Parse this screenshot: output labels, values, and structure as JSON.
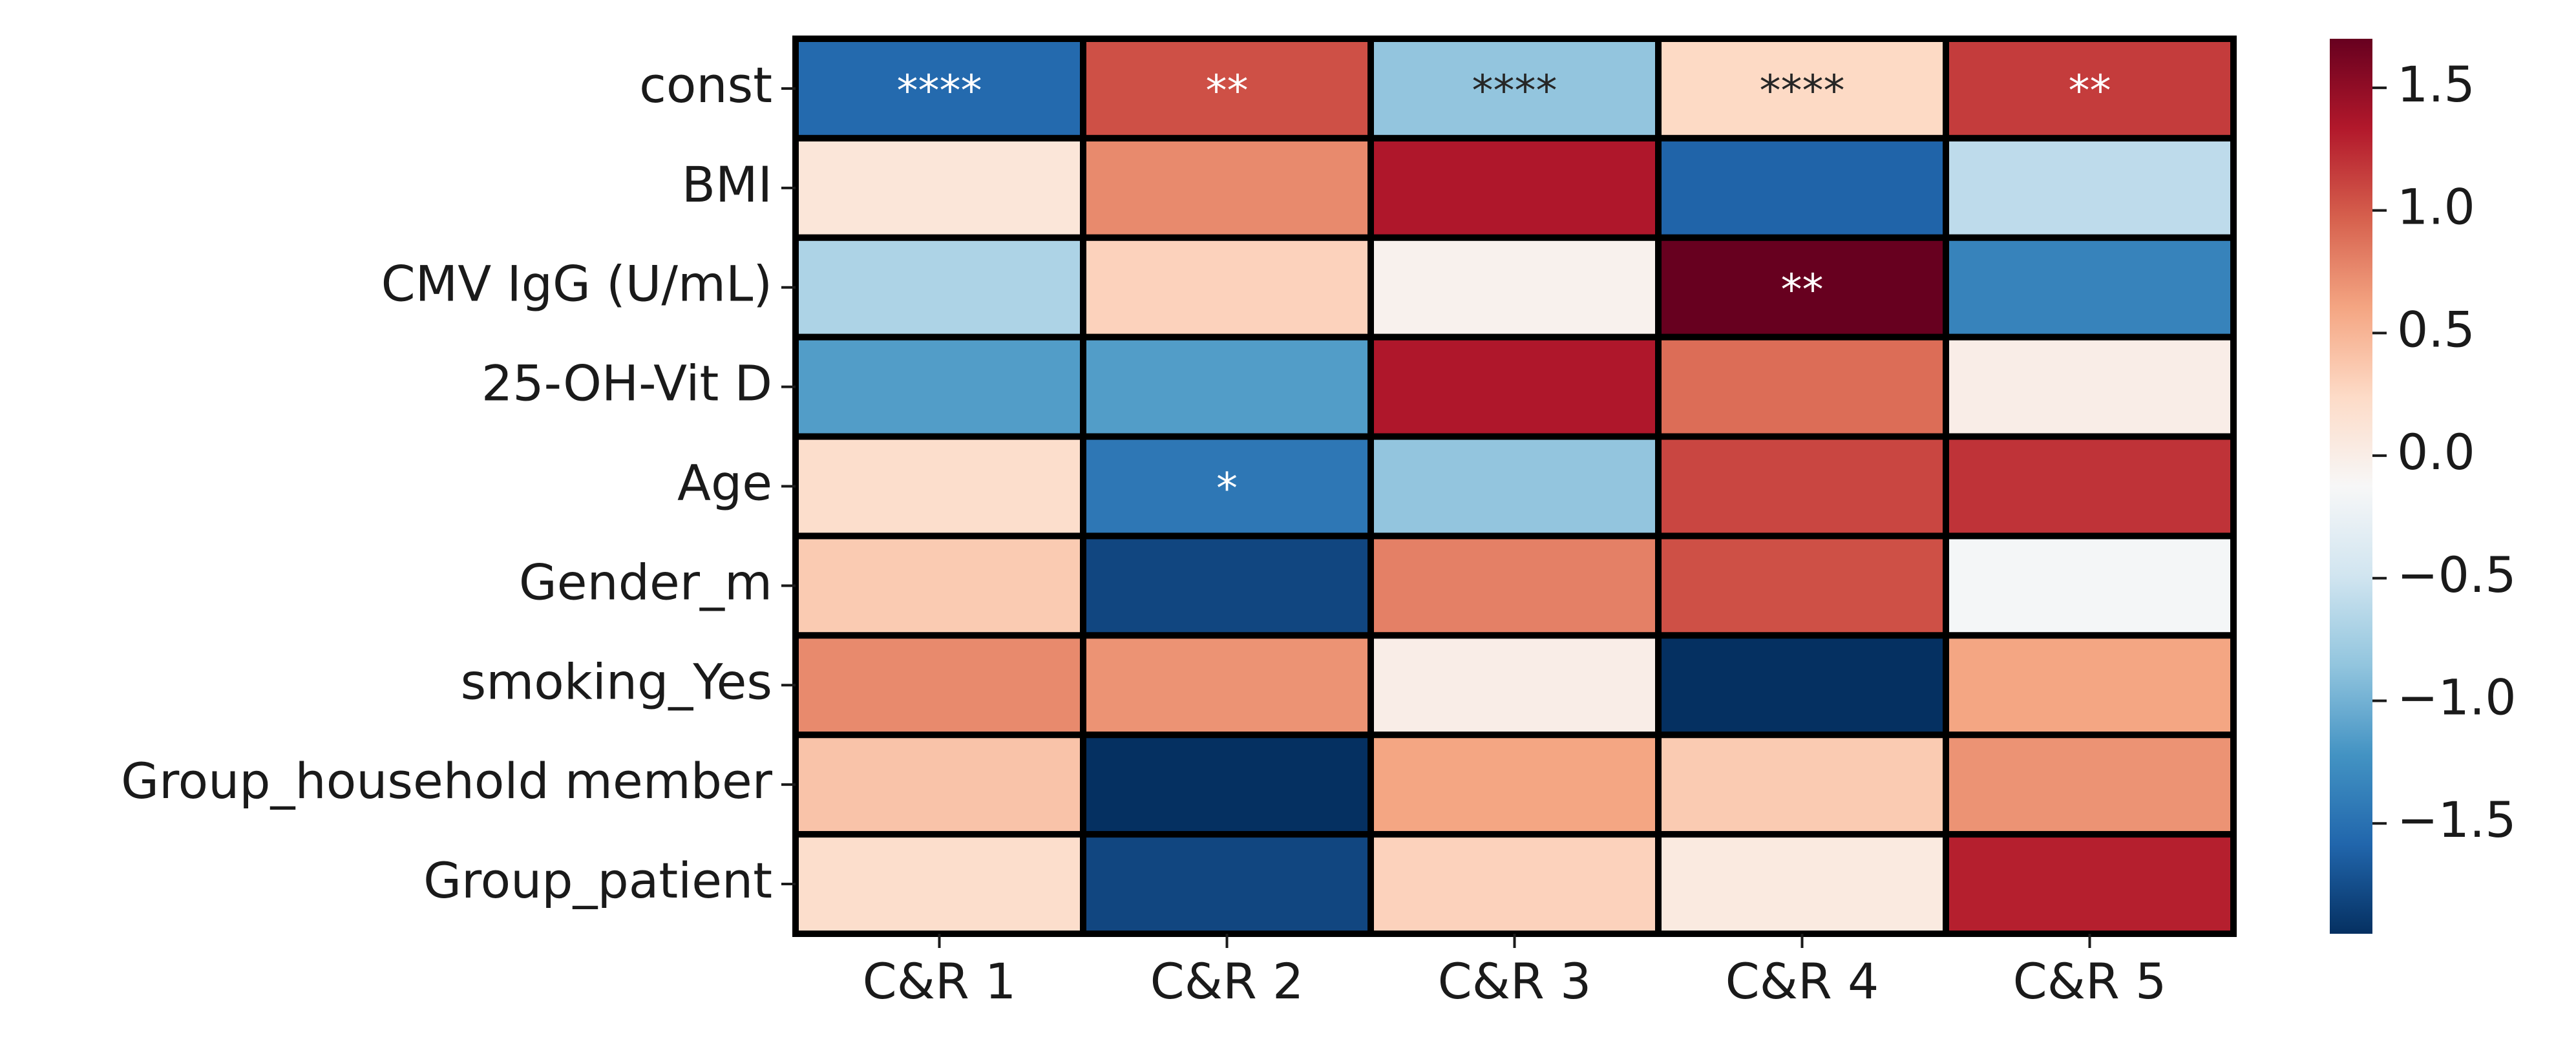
{
  "chart_data": {
    "type": "heatmap",
    "title": "",
    "xlabel": "",
    "ylabel": "",
    "columns": [
      "C&R 1",
      "C&R 2",
      "C&R 3",
      "C&R 4",
      "C&R 5"
    ],
    "rows": [
      "const",
      "BMI",
      "CMV IgG (U/mL)",
      "25-OH-Vit D",
      "Age",
      "Gender_m",
      "smoking_Yes",
      "Group_household member",
      "Group_patient"
    ],
    "values": [
      [
        -1.55,
        1.05,
        -0.85,
        0.25,
        1.15
      ],
      [
        0.1,
        0.75,
        1.35,
        -1.6,
        -0.6
      ],
      [
        -0.7,
        0.3,
        -0.05,
        1.7,
        -1.35
      ],
      [
        -1.15,
        -1.15,
        1.35,
        0.9,
        0.0
      ],
      [
        0.2,
        -1.45,
        -0.85,
        1.1,
        1.2
      ],
      [
        0.35,
        -1.8,
        0.8,
        1.05,
        -0.15
      ],
      [
        0.75,
        0.7,
        0.0,
        -1.95,
        0.6
      ],
      [
        0.4,
        -1.95,
        0.6,
        0.35,
        0.7
      ],
      [
        0.2,
        -1.8,
        0.3,
        0.05,
        1.3
      ]
    ],
    "annotations": [
      [
        "****",
        "**",
        "****",
        "****",
        "**"
      ],
      [
        "",
        "",
        "",
        "",
        ""
      ],
      [
        "",
        "",
        "",
        "**",
        ""
      ],
      [
        "",
        "",
        "",
        "",
        ""
      ],
      [
        "",
        "*",
        "",
        "",
        ""
      ],
      [
        "",
        "",
        "",
        "",
        ""
      ],
      [
        "",
        "",
        "",
        "",
        ""
      ],
      [
        "",
        "",
        "",
        "",
        ""
      ],
      [
        "",
        "",
        "",
        "",
        ""
      ]
    ],
    "colorbar": {
      "colormap": "RdBu_r",
      "range": [
        -1.95,
        1.7
      ],
      "ticks": [
        1.5,
        1.0,
        0.5,
        0.0,
        -0.5,
        -1.0,
        -1.5
      ],
      "tick_labels": [
        "1.5",
        "1.0",
        "0.5",
        "0.0",
        "−0.5",
        "−1.0",
        "−1.5"
      ]
    },
    "legend_position": "right",
    "grid": false,
    "colors": {
      "cell_border": "#000000",
      "annotation_light": "#ffffff",
      "annotation_dark": "#262626",
      "text": "#1a1a1a"
    }
  }
}
